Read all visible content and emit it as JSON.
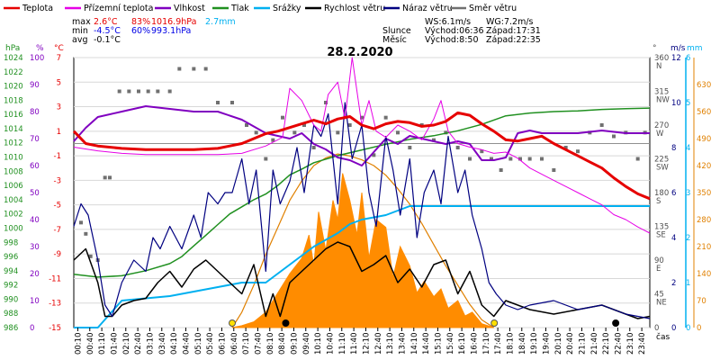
{
  "chart_data": {
    "type": "line",
    "title": "28.2.2020",
    "legend": [
      {
        "label": "Teplota",
        "color": "#e60000"
      },
      {
        "label": "Přízemní teplota",
        "color": "#e600e6"
      },
      {
        "label": "Vlhkost",
        "color": "#8000c0"
      },
      {
        "label": "Tlak",
        "color": "#209020"
      },
      {
        "label": "Srážky",
        "color": "#00b0f0"
      },
      {
        "label": "Rychlost větru",
        "color": "#000000"
      },
      {
        "label": "Náraz větru",
        "color": "#000080"
      },
      {
        "label": "Směr větru",
        "color": "#707070"
      }
    ],
    "stats": {
      "max_label": "max",
      "min_label": "min",
      "avg_label": "avg",
      "max_temp": "2.6°C",
      "max_hum": "83%",
      "max_press": "1016.9hPa",
      "max_rain": "2.7mm",
      "min_temp": "-4.5°C",
      "min_hum": "60%",
      "min_press": "993.1hPa",
      "avg_temp": "-0.1°C",
      "ws": "WS:6.1m/s",
      "wg": "WG:7.2m/s",
      "sun_label": "Slunce",
      "sun_rise": "Východ:06:36",
      "sun_set": "Západ:17:31",
      "moon_label": "Měsíc",
      "moon_rise": "Východ:8:50",
      "moon_set": "Západ:22:35"
    },
    "axes": {
      "hpa_unit": "hPa",
      "pct_unit": "%",
      "c_unit": "°C",
      "deg_unit": "°",
      "ms_unit": "m/s",
      "mm_unit": "mm",
      "xlabel": "čas",
      "hpa_ticks": [
        "1024",
        "1022",
        "1020",
        "1018",
        "1016",
        "1014",
        "1012",
        "1010",
        "1008",
        "1006",
        "1004",
        "1002",
        "1000",
        "998",
        "996",
        "994",
        "992",
        "990",
        "988",
        "986"
      ],
      "pct_ticks": [
        "100",
        "90",
        "80",
        "70",
        "60",
        "50",
        "40",
        "30",
        "20",
        "10",
        "0"
      ],
      "c_ticks": [
        "7",
        "5",
        "3",
        "1",
        "-1",
        "-3",
        "-5",
        "-7",
        "-9",
        "-11",
        "-13",
        "-15"
      ],
      "dir_ticks": [
        [
          "360",
          "N"
        ],
        [
          "315",
          "NW"
        ],
        [
          "270",
          "W"
        ],
        [
          "225",
          "SW"
        ],
        [
          "180",
          "S"
        ],
        [
          "135",
          "SE"
        ],
        [
          "90",
          "E"
        ],
        [
          "45",
          "NE"
        ],
        [
          "0",
          ""
        ]
      ],
      "ms_ticks": [
        "12",
        "10",
        "8",
        "6",
        "4",
        "2",
        "0"
      ],
      "mm_ticks": [
        "6",
        "5",
        "4",
        "3",
        "2",
        "1",
        "0"
      ],
      "rad_ticks": [
        "630",
        "560",
        "490",
        "420",
        "350",
        "280",
        "210",
        "140",
        "70",
        "0"
      ],
      "time_ticks": [
        "00:10",
        "00:40",
        "01:10",
        "01:40",
        "02:10",
        "02:40",
        "03:10",
        "03:40",
        "04:10",
        "04:40",
        "05:10",
        "05:40",
        "06:10",
        "06:40",
        "07:10",
        "07:40",
        "08:10",
        "08:40",
        "09:10",
        "09:40",
        "10:10",
        "10:40",
        "11:10",
        "11:40",
        "12:10",
        "12:40",
        "13:10",
        "13:40",
        "14:10",
        "14:40",
        "15:10",
        "15:40",
        "16:10",
        "16:40",
        "17:10",
        "17:40",
        "18:10",
        "18:40",
        "19:10",
        "19:40",
        "20:10",
        "20:40",
        "21:10",
        "21:40",
        "22:10",
        "22:40",
        "23:10",
        "23:40"
      ]
    },
    "series": {
      "temperature_c": {
        "hours": [
          0,
          0.5,
          1,
          2,
          3,
          4,
          5,
          6,
          6.5,
          7,
          7.5,
          8,
          8.5,
          9,
          9.5,
          10,
          10.5,
          11,
          11.5,
          12,
          12.5,
          13,
          13.5,
          14,
          14.5,
          15,
          15.5,
          16,
          16.5,
          17,
          17.5,
          18,
          18.5,
          19,
          19.5,
          20,
          20.5,
          21,
          21.5,
          22,
          22.5,
          23,
          23.5,
          24
        ],
        "values": [
          1.0,
          0,
          -0.2,
          -0.4,
          -0.5,
          -0.5,
          -0.5,
          -0.4,
          -0.2,
          0,
          0.4,
          0.8,
          1.0,
          1.3,
          1.6,
          1.9,
          1.6,
          2.0,
          2.2,
          1.5,
          1.2,
          1.6,
          1.8,
          1.7,
          1.4,
          1.5,
          1.8,
          2.5,
          2.3,
          1.6,
          1.0,
          0.3,
          0.2,
          0.4,
          0.6,
          0,
          -0.5,
          -1.0,
          -1.5,
          -2.0,
          -2.8,
          -3.5,
          -4.1,
          -4.5
        ]
      },
      "ground_temp_c": {
        "hours": [
          0,
          1,
          2,
          3,
          4,
          5,
          6,
          7,
          8,
          8.7,
          9,
          9.5,
          10,
          10.3,
          10.6,
          11,
          11.3,
          11.6,
          12,
          12.3,
          12.6,
          13,
          13.5,
          14,
          14.5,
          15,
          15.3,
          15.6,
          16,
          16.5,
          17,
          17.5,
          18,
          18.5,
          19,
          20,
          21,
          21.5,
          22,
          22.5,
          23,
          23.5,
          24
        ],
        "values": [
          -0.3,
          -0.6,
          -0.8,
          -0.9,
          -0.9,
          -0.9,
          -0.9,
          -0.8,
          -0.2,
          0.5,
          4.5,
          3.5,
          1.5,
          1.0,
          4.0,
          5.0,
          2.0,
          7.0,
          1.5,
          3.5,
          1.0,
          0.5,
          1.5,
          1.0,
          0.3,
          2.0,
          3.5,
          1.0,
          0,
          -0.3,
          -0.5,
          -0.8,
          -0.7,
          -1.2,
          -2.0,
          -3.0,
          -4.0,
          -4.5,
          -5.0,
          -5.8,
          -6.2,
          -6.8,
          -7.3
        ]
      },
      "humidity_pct": {
        "hours": [
          0,
          0.5,
          1,
          2,
          3,
          4,
          5,
          6,
          7,
          8,
          9,
          9.5,
          10,
          10.5,
          11,
          11.5,
          12,
          12.5,
          13,
          13.5,
          14,
          14.5,
          15,
          15.5,
          16,
          16.5,
          17,
          17.5,
          18,
          18.5,
          19,
          19.5,
          20,
          21,
          22,
          23,
          24
        ],
        "values": [
          69,
          74,
          78,
          80,
          82,
          81,
          80,
          80,
          77,
          72,
          70,
          72,
          68,
          66,
          63,
          62,
          60,
          65,
          70,
          68,
          71,
          70,
          69,
          68,
          69,
          68,
          62,
          62,
          63,
          72,
          73,
          72,
          72,
          72,
          73,
          72,
          72
        ]
      },
      "pressure_hpa": {
        "hours": [
          0,
          1,
          2,
          3,
          4,
          4.5,
          5,
          5.5,
          6,
          6.5,
          7,
          7.5,
          8,
          8.5,
          9,
          9.5,
          10,
          11,
          12,
          13,
          14,
          15,
          16,
          17,
          18,
          19,
          20,
          21,
          22,
          23,
          24
        ],
        "values": [
          993.5,
          993.1,
          993.3,
          994,
          995,
          996,
          997.5,
          999,
          1000.5,
          1002,
          1003,
          1004,
          1004.8,
          1006,
          1007.5,
          1008.3,
          1009.2,
          1010.2,
          1011,
          1011.8,
          1012.5,
          1013,
          1013.7,
          1014.6,
          1015.8,
          1016.2,
          1016.4,
          1016.5,
          1016.7,
          1016.8,
          1016.9
        ]
      },
      "rain_mm": {
        "hours": [
          0,
          1,
          1.5,
          2,
          4,
          6,
          7,
          8,
          9,
          10,
          11,
          11.5,
          12,
          13,
          14,
          15,
          16,
          17,
          18,
          20,
          22,
          24
        ],
        "values": [
          0,
          0,
          0.3,
          0.6,
          0.7,
          0.9,
          1.0,
          1.0,
          1.4,
          1.8,
          2.1,
          2.3,
          2.4,
          2.5,
          2.7,
          2.7,
          2.7,
          2.7,
          2.7,
          2.7,
          2.7,
          2.7
        ]
      },
      "wind_speed_ms": {
        "hours": [
          0,
          0.5,
          1,
          1.3,
          1.6,
          2,
          2.5,
          3,
          3.5,
          4,
          4.5,
          5,
          5.5,
          6,
          6.5,
          7,
          7.5,
          8,
          8.3,
          8.6,
          9,
          9.5,
          10,
          10.5,
          11,
          11.5,
          12,
          12.5,
          13,
          13.5,
          14,
          14.5,
          15,
          15.5,
          16,
          16.5,
          17,
          17.5,
          18,
          18.5,
          19,
          20,
          21,
          22,
          23,
          23.5,
          24
        ],
        "values": [
          3.0,
          3.5,
          2.0,
          0.5,
          0.5,
          1.0,
          1.2,
          1.3,
          2.0,
          2.5,
          1.8,
          2.6,
          3.0,
          2.5,
          2.0,
          1.5,
          2.8,
          0.5,
          1.5,
          0.5,
          2.0,
          2.5,
          3.0,
          3.5,
          3.8,
          3.6,
          2.5,
          2.8,
          3.2,
          2.0,
          2.6,
          1.8,
          2.8,
          3.0,
          1.5,
          2.5,
          1.0,
          0.5,
          1.2,
          1.0,
          0.8,
          0.6,
          0.8,
          1.0,
          0.6,
          0.4,
          0.5
        ]
      },
      "wind_gust_ms": {
        "hours": [
          0,
          0.3,
          0.6,
          1,
          1.3,
          1.6,
          2,
          2.5,
          3,
          3.3,
          3.6,
          4,
          4.5,
          5,
          5.3,
          5.6,
          6,
          6.3,
          6.6,
          7,
          7.3,
          7.6,
          8,
          8.3,
          8.6,
          9,
          9.3,
          9.6,
          10,
          10.3,
          10.6,
          11,
          11.3,
          11.6,
          12,
          12.3,
          12.6,
          13,
          13.3,
          13.6,
          14,
          14.3,
          14.6,
          15,
          15.3,
          15.6,
          16,
          16.3,
          16.6,
          17,
          17.3,
          17.6,
          18,
          18.5,
          19,
          20,
          21,
          22,
          23,
          24
        ],
        "values": [
          4.5,
          5.5,
          5.0,
          3.0,
          1.0,
          0.5,
          2.0,
          3.0,
          2.5,
          4.0,
          3.5,
          4.5,
          3.5,
          5.0,
          4.0,
          6.0,
          5.5,
          6.0,
          6.0,
          7.5,
          5.5,
          7.0,
          2.5,
          7.0,
          5.5,
          6.5,
          8.0,
          6.0,
          9.0,
          8.5,
          9.5,
          5.5,
          10.0,
          7.5,
          9.0,
          6.0,
          4.5,
          8.5,
          7.0,
          5.0,
          7.5,
          4.0,
          6.0,
          7.0,
          5.5,
          8.5,
          6.0,
          7.0,
          5.0,
          3.5,
          2.0,
          1.5,
          1.0,
          0.8,
          1.0,
          1.2,
          0.8,
          1.0,
          0.6,
          0.4
        ]
      },
      "wind_dir_deg": {
        "hours": [
          0.3,
          0.5,
          0.7,
          1.0,
          1.3,
          1.5,
          1.9,
          2.3,
          2.7,
          3.1,
          3.5,
          4.0,
          4.4,
          5.0,
          5.5,
          6.0,
          6.6,
          7.2,
          7.6,
          8.0,
          8.3,
          8.7,
          9.2,
          9.6,
          10.0,
          10.5,
          11.0,
          11.5,
          12.0,
          12.5,
          13.0,
          13.5,
          14.0,
          14.5,
          15.0,
          15.5,
          16.0,
          16.5,
          17.0,
          17.4,
          17.8,
          18.2,
          18.6,
          19.0,
          19.5,
          20.0,
          20.5,
          21.0,
          21.5,
          22.0,
          22.5,
          23.0,
          23.5,
          23.8
        ],
        "values": [
          140,
          125,
          95,
          90,
          200,
          200,
          315,
          315,
          315,
          315,
          315,
          315,
          345,
          345,
          345,
          300,
          300,
          270,
          260,
          225,
          250,
          280,
          260,
          270,
          240,
          300,
          260,
          270,
          280,
          230,
          280,
          260,
          240,
          270,
          250,
          260,
          240,
          225,
          235,
          225,
          210,
          225,
          225,
          225,
          225,
          210,
          240,
          235,
          260,
          270,
          255,
          260,
          225,
          260
        ]
      },
      "solar_rad_wm2": {
        "hours": [
          6.6,
          7,
          7.5,
          8,
          8.5,
          9,
          9.5,
          9.8,
          10,
          10.2,
          10.5,
          10.8,
          11,
          11.2,
          11.5,
          11.8,
          12,
          12.3,
          12.6,
          13,
          13.3,
          13.6,
          14,
          14.3,
          14.6,
          15,
          15.3,
          15.6,
          16,
          16.3,
          16.6,
          17,
          17.5
        ],
        "values": [
          0,
          5,
          15,
          40,
          90,
          140,
          180,
          240,
          160,
          300,
          200,
          330,
          280,
          400,
          330,
          240,
          350,
          180,
          280,
          260,
          130,
          210,
          160,
          90,
          120,
          80,
          100,
          50,
          70,
          30,
          40,
          10,
          0
        ]
      },
      "solar_max_wm2": {
        "hours": [
          6.6,
          7,
          7.5,
          8,
          8.5,
          9,
          9.5,
          10,
          10.5,
          11,
          11.5,
          12,
          12.5,
          13,
          13.5,
          14,
          14.5,
          15,
          15.5,
          16,
          16.5,
          17,
          17.5
        ],
        "values": [
          0,
          40,
          110,
          190,
          260,
          330,
          380,
          420,
          440,
          450,
          445,
          435,
          420,
          395,
          360,
          320,
          270,
          215,
          160,
          110,
          60,
          20,
          0
        ]
      }
    }
  }
}
